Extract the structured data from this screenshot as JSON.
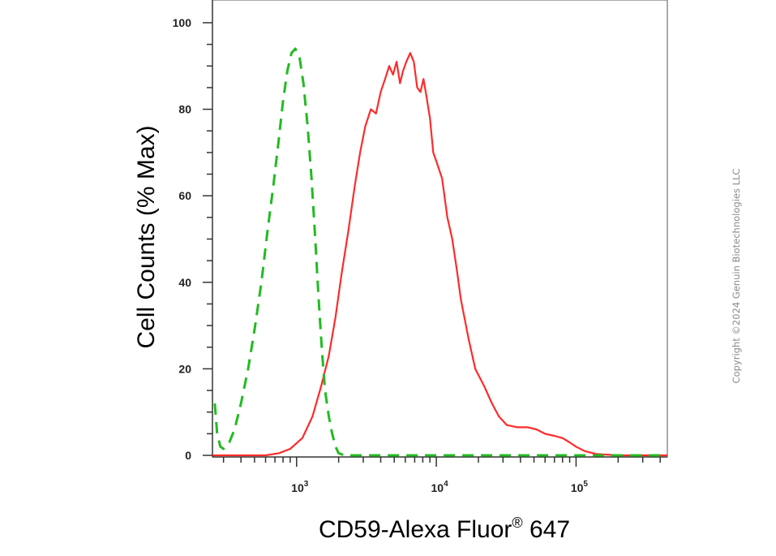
{
  "chart_data": {
    "type": "line",
    "title": "",
    "xlabel": "CD59-Alexa Fluor",
    "xlabel_mark": "®",
    "xlabel_suffix": " 647",
    "ylabel": "Cell Counts (% Max)",
    "x_scale": "log",
    "xlim": [
      250,
      450000
    ],
    "ylim": [
      0,
      100
    ],
    "y_ticks": [
      0,
      20,
      40,
      60,
      80,
      100
    ],
    "x_major_ticks": [
      {
        "value": 1000,
        "base": "10",
        "exp": "3"
      },
      {
        "value": 10000,
        "base": "10",
        "exp": "4"
      },
      {
        "value": 100000,
        "base": "10",
        "exp": "5"
      }
    ],
    "grid": false,
    "legend": "none",
    "series": [
      {
        "color": "#ff2a2a",
        "style": "solid",
        "points": [
          [
            250,
            0
          ],
          [
            600,
            0
          ],
          [
            750,
            0.5
          ],
          [
            900,
            1.5
          ],
          [
            1100,
            4
          ],
          [
            1300,
            9
          ],
          [
            1500,
            16
          ],
          [
            1700,
            23
          ],
          [
            1900,
            32
          ],
          [
            2100,
            42
          ],
          [
            2350,
            52
          ],
          [
            2600,
            62
          ],
          [
            2850,
            70
          ],
          [
            3100,
            76
          ],
          [
            3400,
            80
          ],
          [
            3700,
            79
          ],
          [
            4000,
            84
          ],
          [
            4300,
            87
          ],
          [
            4600,
            90
          ],
          [
            4900,
            88
          ],
          [
            5200,
            91
          ],
          [
            5500,
            86
          ],
          [
            5800,
            89
          ],
          [
            6100,
            91
          ],
          [
            6500,
            93
          ],
          [
            6900,
            91
          ],
          [
            7300,
            85
          ],
          [
            7700,
            84
          ],
          [
            8100,
            87
          ],
          [
            8500,
            83
          ],
          [
            9000,
            78
          ],
          [
            9500,
            70
          ],
          [
            10000,
            68
          ],
          [
            11000,
            64
          ],
          [
            12000,
            55
          ],
          [
            13000,
            50
          ],
          [
            14000,
            43
          ],
          [
            15000,
            36
          ],
          [
            17000,
            27
          ],
          [
            19000,
            20
          ],
          [
            22000,
            16
          ],
          [
            25000,
            12
          ],
          [
            28000,
            9
          ],
          [
            32000,
            7
          ],
          [
            38000,
            6.5
          ],
          [
            45000,
            6.5
          ],
          [
            52000,
            6
          ],
          [
            60000,
            5
          ],
          [
            70000,
            4.5
          ],
          [
            80000,
            4
          ],
          [
            90000,
            3
          ],
          [
            100000,
            2
          ],
          [
            115000,
            1
          ],
          [
            140000,
            0.3
          ],
          [
            200000,
            0
          ],
          [
            450000,
            0
          ]
        ]
      },
      {
        "color": "#22bb22",
        "style": "dashed",
        "points": [
          [
            260,
            12
          ],
          [
            270,
            5
          ],
          [
            285,
            2
          ],
          [
            300,
            1.5
          ],
          [
            330,
            3
          ],
          [
            360,
            6
          ],
          [
            400,
            12
          ],
          [
            450,
            20
          ],
          [
            500,
            29
          ],
          [
            560,
            40
          ],
          [
            620,
            52
          ],
          [
            680,
            62
          ],
          [
            740,
            72
          ],
          [
            800,
            82
          ],
          [
            860,
            89
          ],
          [
            920,
            93
          ],
          [
            980,
            94
          ],
          [
            1050,
            92
          ],
          [
            1120,
            86
          ],
          [
            1200,
            76
          ],
          [
            1280,
            64
          ],
          [
            1360,
            50
          ],
          [
            1440,
            36
          ],
          [
            1520,
            24
          ],
          [
            1600,
            15
          ],
          [
            1700,
            9
          ],
          [
            1800,
            5
          ],
          [
            1900,
            2
          ],
          [
            2000,
            0.5
          ],
          [
            2200,
            0
          ],
          [
            450000,
            0
          ]
        ]
      }
    ]
  },
  "watermark": {
    "copyright": "Copyright ©2024 Genuin Biotechnologies LLC"
  }
}
